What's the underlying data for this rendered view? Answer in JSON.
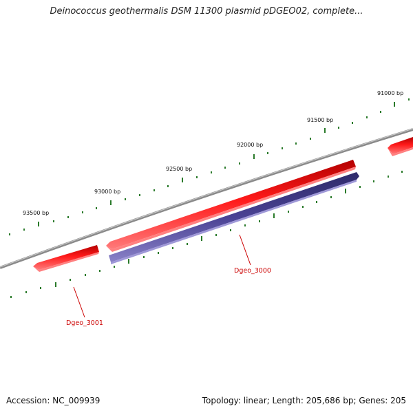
{
  "title": "Deinococcus geothermalis DSM 11300 plasmid pDGEO02, complete...",
  "footer": {
    "accession": "Accession: NC_009939",
    "summary": "Topology: linear; Length: 205,686 bp; Genes: 205"
  },
  "ticks": [
    {
      "label": "91000 bp"
    },
    {
      "label": "91500 bp"
    },
    {
      "label": "92000 bp"
    },
    {
      "label": "92500 bp"
    },
    {
      "label": "93000 bp"
    },
    {
      "label": "93500 bp"
    }
  ],
  "genes": [
    {
      "label": "Dgeo_3001"
    },
    {
      "label": "Dgeo_3000"
    }
  ],
  "colors": {
    "forward_gene": "#e60000",
    "reverse_gene": "#3d3580",
    "backbone": "#7a7a7a",
    "ticks": "#2a7a2a",
    "gene_label": "#cc0000"
  }
}
